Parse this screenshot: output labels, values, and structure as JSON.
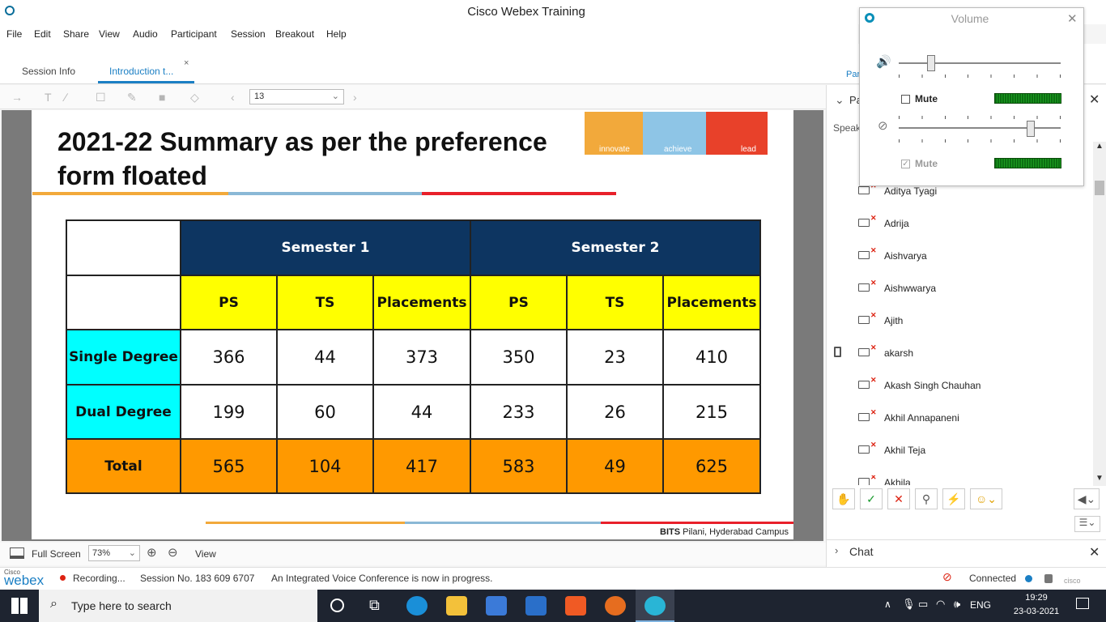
{
  "window": {
    "title": "Cisco Webex Training"
  },
  "menu": [
    "File",
    "Edit",
    "Share",
    "View",
    "Audio",
    "Participant",
    "Session",
    "Breakout",
    "Help"
  ],
  "tabs": [
    {
      "label": "Session Info"
    },
    {
      "label": "Introduction t..."
    }
  ],
  "toolbar": {
    "page_number": "13"
  },
  "slide": {
    "title": "2021-22 Summary as per the preference form floated",
    "logo": {
      "innovate": "innovate",
      "achieve": "achieve",
      "lead": "lead"
    },
    "footer_bold": "BITS",
    "footer_rest": " Pilani, Hyderabad Campus",
    "table": {
      "semesters": [
        "Semester 1",
        "Semester 2"
      ],
      "columns": [
        "PS",
        "TS",
        "Placements",
        "PS",
        "TS",
        "Placements"
      ],
      "rows": [
        {
          "label": "Single Degree",
          "values": [
            "366",
            "44",
            "373",
            "350",
            "23",
            "410"
          ]
        },
        {
          "label": "Dual Degree",
          "values": [
            "199",
            "60",
            "44",
            "233",
            "26",
            "215"
          ]
        },
        {
          "label": "Total",
          "values": [
            "565",
            "104",
            "417",
            "583",
            "49",
            "625"
          ]
        }
      ]
    }
  },
  "viewbar": {
    "fullscreen": "Full Screen",
    "zoom": "73%",
    "view": "View"
  },
  "status": {
    "brand_small": "Cisco",
    "brand": "webex",
    "recording": "Recording...",
    "session": "Session No. 183 609 6707",
    "conference": "An Integrated Voice Conference is now in progress.",
    "connected": "Connected",
    "cisco": "cisco"
  },
  "panel": {
    "header_partial": "Pa",
    "speaker_partial": "Speak",
    "tab_partial": "Par",
    "attendees": [
      "Aditya Tyagi",
      "Adrija",
      "Aishvarya",
      "Aishwwarya",
      "Ajith",
      "akarsh",
      "Akash Singh Chauhan",
      "Akhil Annapaneni",
      "Akhil Teja",
      "Akhila"
    ]
  },
  "chat": {
    "label": "Chat"
  },
  "volume": {
    "title": "Volume",
    "mute_label": "Mute",
    "mic_mute_label": "Mute"
  },
  "taskbar": {
    "search_placeholder": "Type here to search",
    "lang": "ENG",
    "time": "19:29",
    "date": "23-03-2021"
  },
  "colors": {
    "header_navy": "#0d3561",
    "subheader_yellow": "#ffff00",
    "row_cyan": "#00ffff",
    "total_orange": "#ff9900",
    "accent_blue": "#1b7fc4"
  }
}
